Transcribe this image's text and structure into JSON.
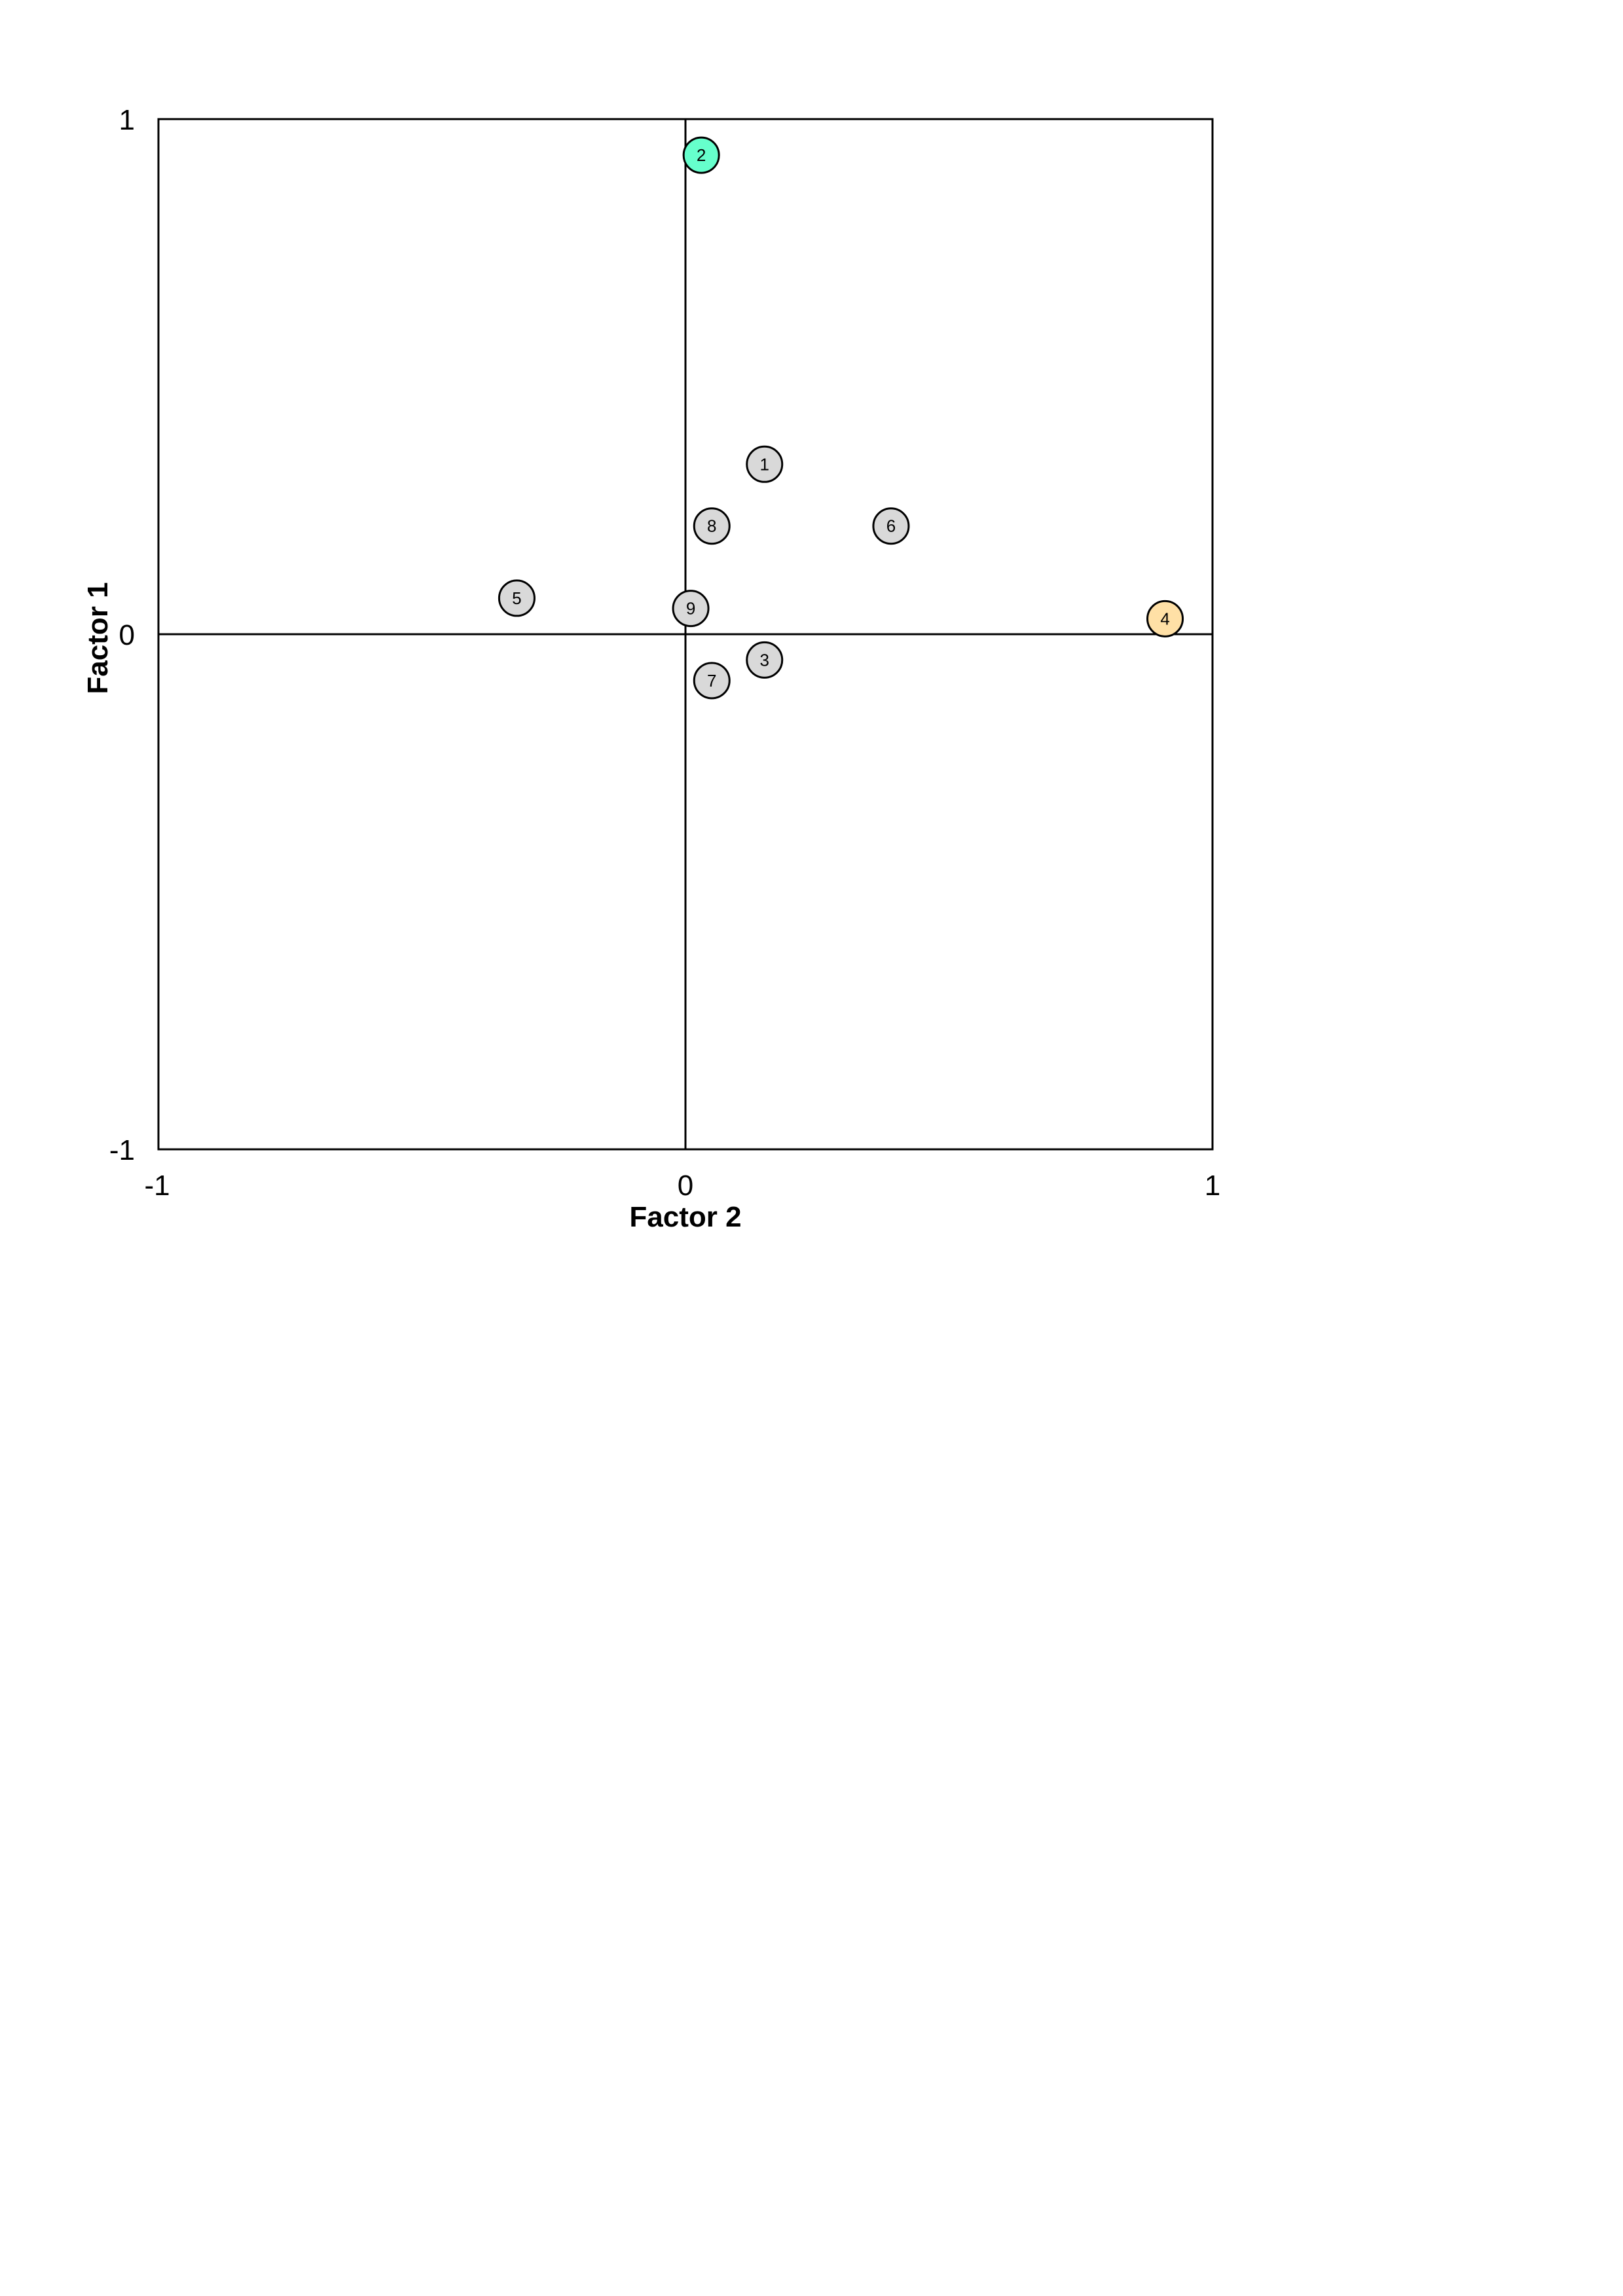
{
  "chart_data": {
    "type": "scatter",
    "xlabel": "Factor 2",
    "ylabel": "Factor 1",
    "xlim": [
      -1,
      1
    ],
    "ylim": [
      -1,
      1
    ],
    "x_ticks": [
      "-1",
      "0",
      "1"
    ],
    "y_ticks": [
      "-1",
      "0",
      "1"
    ],
    "grid": false,
    "zero_lines": true,
    "points": [
      {
        "label": "1",
        "x": 0.15,
        "y": 0.33,
        "color": "#d9d9d9"
      },
      {
        "label": "2",
        "x": 0.03,
        "y": 0.93,
        "color": "#66ffcc"
      },
      {
        "label": "3",
        "x": 0.15,
        "y": -0.05,
        "color": "#d9d9d9"
      },
      {
        "label": "4",
        "x": 0.91,
        "y": 0.03,
        "color": "#ffe0a6"
      },
      {
        "label": "5",
        "x": -0.32,
        "y": 0.07,
        "color": "#d9d9d9"
      },
      {
        "label": "6",
        "x": 0.39,
        "y": 0.21,
        "color": "#d9d9d9"
      },
      {
        "label": "7",
        "x": 0.05,
        "y": -0.09,
        "color": "#d9d9d9"
      },
      {
        "label": "8",
        "x": 0.05,
        "y": 0.21,
        "color": "#d9d9d9"
      },
      {
        "label": "9",
        "x": 0.01,
        "y": 0.05,
        "color": "#d9d9d9"
      }
    ]
  }
}
